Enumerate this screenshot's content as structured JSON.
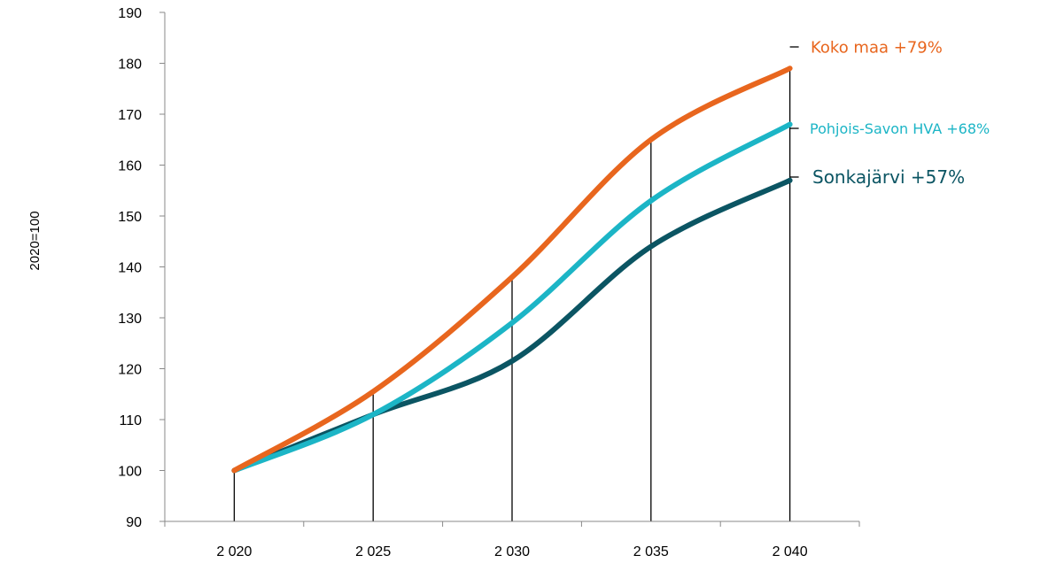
{
  "chart_data": {
    "type": "line",
    "ylabel": "2020=100",
    "xlabel": "",
    "title": "",
    "x": [
      2020,
      2025,
      2030,
      2035,
      2040
    ],
    "x_tick_labels": [
      "2 020",
      "2 025",
      "2 030",
      "2 035",
      "2 040"
    ],
    "ylim": [
      90,
      190
    ],
    "y_ticks": [
      90,
      100,
      110,
      120,
      130,
      140,
      150,
      160,
      170,
      180,
      190
    ],
    "grid": false,
    "smoothed": true,
    "drop_lines": true,
    "series": [
      {
        "name": "Koko maa",
        "values": [
          100,
          115.5,
          138,
          165,
          179
        ],
        "color": "#E8661E",
        "label": "Koko  maa +79%"
      },
      {
        "name": "Pohjois-Savon HVA",
        "values": [
          100,
          111,
          129,
          153,
          168
        ],
        "color": "#1CB5C6",
        "label": "Pohjois-Savon HVA +68%"
      },
      {
        "name": "Sonkajärvi",
        "values": [
          100,
          111,
          121.5,
          144,
          157
        ],
        "color": "#0B5563",
        "label": "Sonkajärvi +57%"
      }
    ]
  }
}
